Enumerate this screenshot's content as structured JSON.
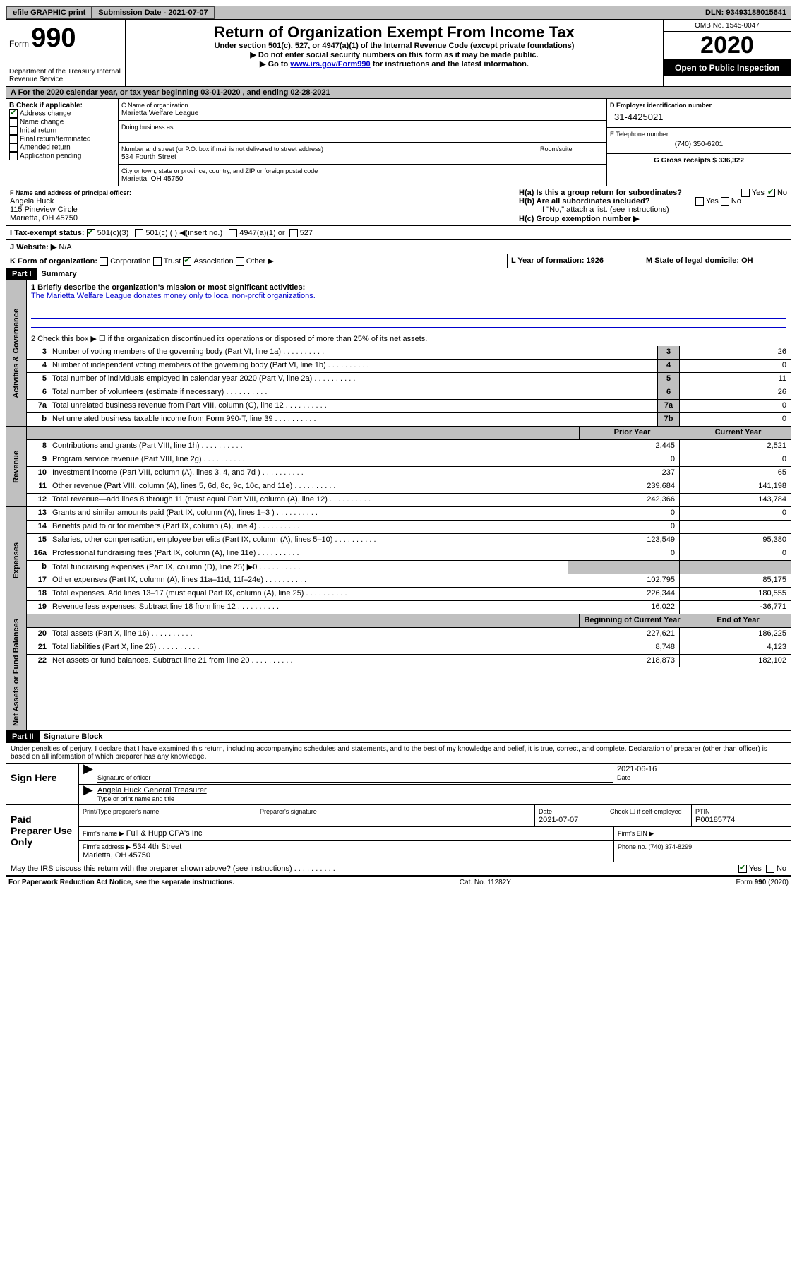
{
  "topbar": {
    "efile": "efile GRAPHIC print",
    "submission_label": "Submission Date - 2021-07-07",
    "dln_label": "DLN: 93493188015641"
  },
  "header": {
    "form_word": "Form",
    "form_num": "990",
    "dept": "Department of the Treasury\nInternal Revenue Service",
    "title": "Return of Organization Exempt From Income Tax",
    "subtitle": "Under section 501(c), 527, or 4947(a)(1) of the Internal Revenue Code (except private foundations)",
    "instr1": "▶ Do not enter social security numbers on this form as it may be made public.",
    "instr2_pre": "▶ Go to ",
    "instr2_link": "www.irs.gov/Form990",
    "instr2_post": " for instructions and the latest information.",
    "omb": "OMB No. 1545-0047",
    "year": "2020",
    "open": "Open to Public Inspection"
  },
  "row_a": "A For the 2020 calendar year, or tax year beginning 03-01-2020   , and ending 02-28-2021",
  "section_b": {
    "label": "B Check if applicable:",
    "items": [
      "Address change",
      "Name change",
      "Initial return",
      "Final return/terminated",
      "Amended return",
      "Application pending"
    ],
    "checked_idx": 0
  },
  "section_c": {
    "name_label": "C Name of organization",
    "name": "Marietta Welfare League",
    "dba_label": "Doing business as",
    "addr_label": "Number and street (or P.O. box if mail is not delivered to street address)",
    "room_label": "Room/suite",
    "addr": "534 Fourth Street",
    "city_label": "City or town, state or province, country, and ZIP or foreign postal code",
    "city": "Marietta, OH  45750"
  },
  "section_d": {
    "label": "D Employer identification number",
    "value": "31-4425021"
  },
  "section_e": {
    "label": "E Telephone number",
    "value": "(740) 350-6201"
  },
  "section_g": {
    "label": "G Gross receipts $ 336,322"
  },
  "section_f": {
    "label": "F  Name and address of principal officer:",
    "name": "Angela Huck",
    "addr1": "115 Pineview Circle",
    "addr2": "Marietta, OH  45750"
  },
  "section_h": {
    "ha": "H(a)  Is this a group return for subordinates?",
    "hb": "H(b)  Are all subordinates included?",
    "hb_note": "If \"No,\" attach a list. (see instructions)",
    "hc": "H(c)  Group exemption number ▶"
  },
  "section_i": {
    "label": "I  Tax-exempt status:",
    "opts": [
      "501(c)(3)",
      "501(c) (  ) ◀(insert no.)",
      "4947(a)(1) or",
      "527"
    ]
  },
  "section_j": {
    "label": "J  Website: ▶",
    "value": "N/A"
  },
  "section_k": {
    "label": "K Form of organization:",
    "opts": [
      "Corporation",
      "Trust",
      "Association",
      "Other ▶"
    ],
    "checked_idx": 2
  },
  "section_l": {
    "label": "L Year of formation: 1926"
  },
  "section_m": {
    "label": "M State of legal domicile: OH"
  },
  "part1": {
    "header": "Part I",
    "title": "Summary"
  },
  "summary": {
    "vlabels": [
      "Activities & Governance",
      "Revenue",
      "Expenses",
      "Net Assets or Fund Balances"
    ],
    "q1_label": "1  Briefly describe the organization's mission or most significant activities:",
    "q1_text": "The Marietta Welfare League donates money only to local non-profit organizations.",
    "q2": "2   Check this box ▶ ☐ if the organization discontinued its operations or disposed of more than 25% of its net assets.",
    "rows_gov": [
      {
        "n": "3",
        "d": "Number of voting members of the governing body (Part VI, line 1a)",
        "box": "3",
        "v": "26"
      },
      {
        "n": "4",
        "d": "Number of independent voting members of the governing body (Part VI, line 1b)",
        "box": "4",
        "v": "0"
      },
      {
        "n": "5",
        "d": "Total number of individuals employed in calendar year 2020 (Part V, line 2a)",
        "box": "5",
        "v": "11"
      },
      {
        "n": "6",
        "d": "Total number of volunteers (estimate if necessary)",
        "box": "6",
        "v": "26"
      },
      {
        "n": "7a",
        "d": "Total unrelated business revenue from Part VIII, column (C), line 12",
        "box": "7a",
        "v": "0"
      },
      {
        "n": "b",
        "d": "Net unrelated business taxable income from Form 990-T, line 39",
        "box": "7b",
        "v": "0"
      }
    ],
    "col_headers": {
      "prior": "Prior Year",
      "current": "Current Year",
      "bcy": "Beginning of Current Year",
      "eoy": "End of Year"
    },
    "rows_rev": [
      {
        "n": "8",
        "d": "Contributions and grants (Part VIII, line 1h)",
        "p": "2,445",
        "c": "2,521"
      },
      {
        "n": "9",
        "d": "Program service revenue (Part VIII, line 2g)",
        "p": "0",
        "c": "0"
      },
      {
        "n": "10",
        "d": "Investment income (Part VIII, column (A), lines 3, 4, and 7d )",
        "p": "237",
        "c": "65"
      },
      {
        "n": "11",
        "d": "Other revenue (Part VIII, column (A), lines 5, 6d, 8c, 9c, 10c, and 11e)",
        "p": "239,684",
        "c": "141,198"
      },
      {
        "n": "12",
        "d": "Total revenue—add lines 8 through 11 (must equal Part VIII, column (A), line 12)",
        "p": "242,366",
        "c": "143,784"
      }
    ],
    "rows_exp": [
      {
        "n": "13",
        "d": "Grants and similar amounts paid (Part IX, column (A), lines 1–3 )",
        "p": "0",
        "c": "0"
      },
      {
        "n": "14",
        "d": "Benefits paid to or for members (Part IX, column (A), line 4)",
        "p": "0",
        "c": ""
      },
      {
        "n": "15",
        "d": "Salaries, other compensation, employee benefits (Part IX, column (A), lines 5–10)",
        "p": "123,549",
        "c": "95,380"
      },
      {
        "n": "16a",
        "d": "Professional fundraising fees (Part IX, column (A), line 11e)",
        "p": "0",
        "c": "0"
      },
      {
        "n": "b",
        "d": "Total fundraising expenses (Part IX, column (D), line 25) ▶0",
        "p": "",
        "c": "",
        "grey": true
      },
      {
        "n": "17",
        "d": "Other expenses (Part IX, column (A), lines 11a–11d, 11f–24e)",
        "p": "102,795",
        "c": "85,175"
      },
      {
        "n": "18",
        "d": "Total expenses. Add lines 13–17 (must equal Part IX, column (A), line 25)",
        "p": "226,344",
        "c": "180,555"
      },
      {
        "n": "19",
        "d": "Revenue less expenses. Subtract line 18 from line 12",
        "p": "16,022",
        "c": "-36,771"
      }
    ],
    "rows_na": [
      {
        "n": "20",
        "d": "Total assets (Part X, line 16)",
        "p": "227,621",
        "c": "186,225"
      },
      {
        "n": "21",
        "d": "Total liabilities (Part X, line 26)",
        "p": "8,748",
        "c": "4,123"
      },
      {
        "n": "22",
        "d": "Net assets or fund balances. Subtract line 21 from line 20",
        "p": "218,873",
        "c": "182,102"
      }
    ]
  },
  "part2": {
    "header": "Part II",
    "title": "Signature Block"
  },
  "sig": {
    "perjury": "Under penalties of perjury, I declare that I have examined this return, including accompanying schedules and statements, and to the best of my knowledge and belief, it is true, correct, and complete. Declaration of preparer (other than officer) is based on all information of which preparer has any knowledge.",
    "sign_here": "Sign Here",
    "sig_officer": "Signature of officer",
    "date1": "2021-06-16",
    "date_label": "Date",
    "officer_name": "Angela Huck  General Treasurer",
    "type_name": "Type or print name and title",
    "paid_prep": "Paid Preparer Use Only",
    "prep_name_label": "Print/Type preparer's name",
    "prep_sig_label": "Preparer's signature",
    "date2_label": "Date",
    "date2": "2021-07-07",
    "check_label": "Check ☐ if self-employed",
    "ptin_label": "PTIN",
    "ptin": "P00185774",
    "firm_name_label": "Firm's name    ▶",
    "firm_name": "Full & Hupp CPA's Inc",
    "firm_ein_label": "Firm's EIN ▶",
    "firm_addr_label": "Firm's address ▶",
    "firm_addr": "534 4th Street\nMarietta, OH  45750",
    "phone_label": "Phone no. (740) 374-8299",
    "discuss": "May the IRS discuss this return with the preparer shown above? (see instructions)",
    "yes": "Yes",
    "no": "No"
  },
  "footer": {
    "left": "For Paperwork Reduction Act Notice, see the separate instructions.",
    "mid": "Cat. No. 11282Y",
    "right": "Form 990 (2020)"
  }
}
